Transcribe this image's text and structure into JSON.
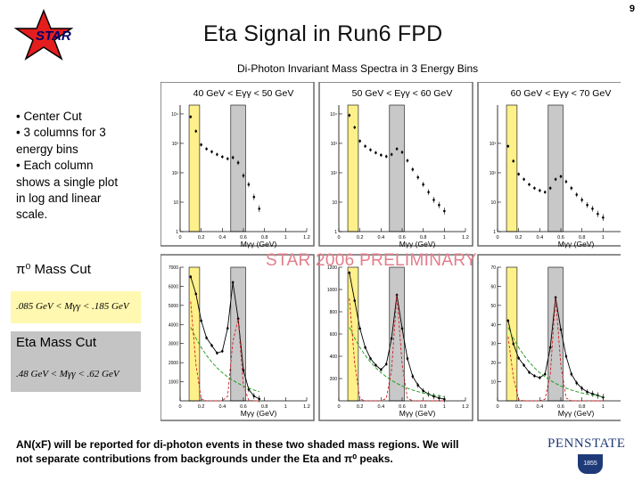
{
  "page_number": "9",
  "logo": {
    "text": "STAR",
    "star_color": "#e41e1e"
  },
  "title": "Eta Signal in Run6 FPD",
  "subtitle": "Di-Photon Invariant Mass Spectra in 3 Energy Bins",
  "bullets": [
    "• Center Cut",
    "• 3 columns for 3",
    "energy bins",
    "• Each column",
    "shows a single plot",
    "in log and linear",
    "scale."
  ],
  "pi0_cut": {
    "label": "π⁰ Mass Cut",
    "formula": ".085 GeV < Mγγ < .185 GeV",
    "color": "#fff8b0"
  },
  "eta_cut": {
    "label": "Eta Mass Cut",
    "formula": ".48 GeV < Mγγ < .62 GeV",
    "color": "#c4c4c4"
  },
  "watermark": "STAR 2006 PRELIMINARY",
  "footer": {
    "line1": "AN(xF) will be reported for di-photon events in these two shaded mass regions. We will",
    "line2": "not separate contributions from backgrounds under the Eta and π⁰ peaks."
  },
  "university_logo": {
    "text": "PENNSTATE",
    "year": "1855"
  },
  "chart_data": [
    {
      "type": "scatter",
      "panel": "log-40-50",
      "title": "40 GeV < Eγγ < 50 GeV",
      "xlabel": "Mγγ (GeV)",
      "xlim": [
        0,
        1.2
      ],
      "log_y": true,
      "x_ticks": [
        "0",
        "0.2",
        "0.4",
        "0.6",
        "0.8",
        "1",
        "1.2"
      ],
      "y_ticks": [
        "1",
        "10",
        "10²",
        "10³",
        "10⁴"
      ],
      "x": [
        0.1,
        0.15,
        0.2,
        0.25,
        0.3,
        0.35,
        0.4,
        0.45,
        0.5,
        0.55,
        0.6,
        0.65,
        0.7,
        0.75
      ],
      "y": [
        8000,
        2600,
        900,
        650,
        520,
        420,
        350,
        300,
        330,
        220,
        80,
        40,
        15,
        6
      ]
    },
    {
      "type": "scatter",
      "panel": "log-50-60",
      "title": "50 GeV < Eγγ < 60 GeV",
      "xlabel": "Mγγ (GeV)",
      "xlim": [
        0,
        1.2
      ],
      "log_y": true,
      "x_ticks": [
        "0",
        "0.2",
        "0.4",
        "0.6",
        "0.8",
        "1",
        "1.2"
      ],
      "y_ticks": [
        "1",
        "10",
        "10²",
        "10³",
        "10⁴"
      ],
      "x": [
        0.1,
        0.15,
        0.2,
        0.25,
        0.3,
        0.35,
        0.4,
        0.45,
        0.5,
        0.55,
        0.6,
        0.65,
        0.7,
        0.75,
        0.8,
        0.85,
        0.9,
        0.95,
        1.0
      ],
      "y": [
        9000,
        3500,
        1200,
        800,
        600,
        480,
        400,
        360,
        420,
        650,
        500,
        260,
        130,
        70,
        40,
        22,
        12,
        8,
        5
      ]
    },
    {
      "type": "scatter",
      "panel": "log-60-70",
      "title": "60 GeV < Eγγ < 70 GeV",
      "xlabel": "Mγγ (GeV)",
      "xlim": [
        0,
        1.2
      ],
      "log_y": true,
      "x_ticks": [
        "0",
        "0.2",
        "0.4",
        "0.6",
        "0.8",
        "1",
        "1.2"
      ],
      "y_ticks": [
        "1",
        "10",
        "10²",
        "10³"
      ],
      "x": [
        0.1,
        0.15,
        0.2,
        0.25,
        0.3,
        0.35,
        0.4,
        0.45,
        0.5,
        0.55,
        0.6,
        0.65,
        0.7,
        0.75,
        0.8,
        0.85,
        0.9,
        0.95,
        1.0
      ],
      "y": [
        800,
        250,
        90,
        60,
        40,
        30,
        25,
        22,
        30,
        60,
        75,
        50,
        30,
        18,
        12,
        8,
        6,
        4,
        3
      ]
    },
    {
      "type": "line",
      "panel": "lin-40-50",
      "xlabel": "Mγγ (GeV)",
      "xlim": [
        0,
        1.2
      ],
      "ylim": [
        0,
        7000
      ],
      "x_ticks": [
        "0",
        "0.2",
        "0.4",
        "0.6",
        "0.8",
        "1",
        "1.2"
      ],
      "y_ticks": [
        "1000",
        "2000",
        "3000",
        "4000",
        "5000",
        "6000",
        "7000"
      ],
      "x": [
        0.1,
        0.15,
        0.2,
        0.25,
        0.3,
        0.35,
        0.4,
        0.45,
        0.5,
        0.55,
        0.6,
        0.65,
        0.7,
        0.75
      ],
      "y": [
        6500,
        5600,
        4200,
        3300,
        2900,
        2500,
        2600,
        3800,
        6200,
        4300,
        1600,
        600,
        250,
        100
      ]
    },
    {
      "type": "line",
      "panel": "lin-50-60",
      "xlabel": "Mγγ (GeV)",
      "xlim": [
        0,
        1.2
      ],
      "ylim": [
        0,
        1200
      ],
      "x_ticks": [
        "0",
        "0.2",
        "0.4",
        "0.6",
        "0.8",
        "1",
        "1.2"
      ],
      "y_ticks": [
        "200",
        "400",
        "600",
        "800",
        "1000",
        "1200"
      ],
      "x": [
        0.1,
        0.15,
        0.2,
        0.25,
        0.3,
        0.35,
        0.4,
        0.45,
        0.5,
        0.55,
        0.6,
        0.65,
        0.7,
        0.75,
        0.8,
        0.85,
        0.9,
        0.95,
        1.0
      ],
      "y": [
        1150,
        900,
        650,
        480,
        380,
        320,
        280,
        330,
        560,
        950,
        650,
        380,
        220,
        140,
        90,
        60,
        40,
        25,
        15
      ]
    },
    {
      "type": "line",
      "panel": "lin-60-70",
      "xlabel": "Mγγ (GeV)",
      "xlim": [
        0,
        1.2
      ],
      "ylim": [
        0,
        75
      ],
      "x_ticks": [
        "0",
        "0.2",
        "0.4",
        "0.6",
        "0.8",
        "1",
        "1.2"
      ],
      "y_ticks": [
        "10",
        "20",
        "30",
        "40",
        "50",
        "60",
        "70"
      ],
      "x": [
        0.1,
        0.15,
        0.2,
        0.25,
        0.3,
        0.35,
        0.4,
        0.45,
        0.5,
        0.55,
        0.6,
        0.65,
        0.7,
        0.75,
        0.8,
        0.85,
        0.9,
        0.95,
        1.0
      ],
      "y": [
        45,
        32,
        24,
        20,
        16,
        14,
        13,
        15,
        30,
        58,
        40,
        25,
        15,
        10,
        7,
        5,
        4,
        3,
        2
      ]
    }
  ],
  "colors": {
    "pi0_band": "#fff18a",
    "eta_band": "#c8c8c8",
    "plot_frame": "#6a6a6a",
    "fit_red": "#d02020",
    "fit_green": "#1a9a1a"
  }
}
